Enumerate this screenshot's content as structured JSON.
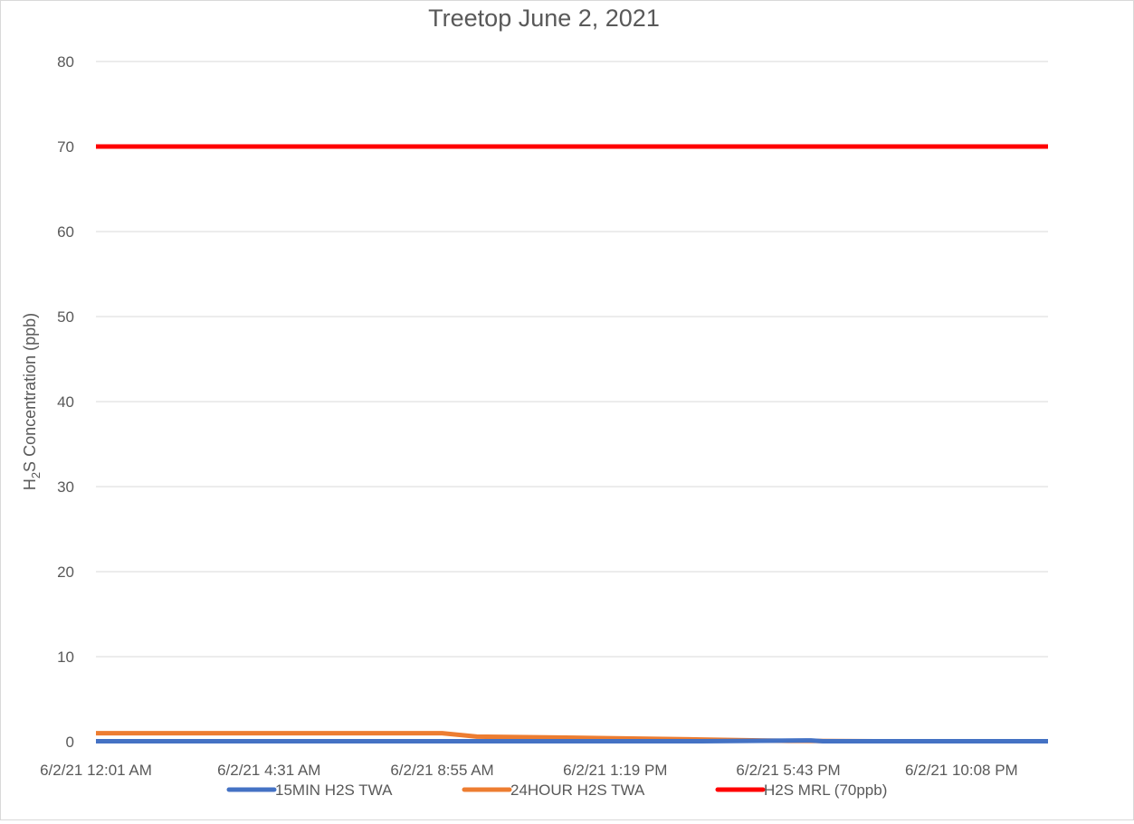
{
  "chart_data": {
    "type": "line",
    "title": "Treetop June 2, 2021",
    "ylabel_parts": {
      "prefix": "H",
      "subscript": "2",
      "suffix": "S Concentration (ppb)"
    },
    "xlabel": "",
    "ylim": [
      0,
      80
    ],
    "ytick_step": 10,
    "yticks": [
      "0",
      "10",
      "20",
      "30",
      "40",
      "50",
      "60",
      "70",
      "80"
    ],
    "grid": true,
    "legend_position": "bottom",
    "x_tick_labels": [
      "6/2/21 12:01 AM",
      "6/2/21 4:31 AM",
      "6/2/21 8:55 AM",
      "6/2/21 1:19 PM",
      "6/2/21 5:43 PM",
      "6/2/21 10:08 PM"
    ],
    "x_tick_index": [
      0,
      1,
      2,
      3,
      4,
      5
    ],
    "x_span": 5.5,
    "series": [
      {
        "name": "15MIN H2S TWA",
        "color": "#4472c4",
        "points": [
          [
            0,
            0.05
          ],
          [
            1,
            0.05
          ],
          [
            2,
            0.05
          ],
          [
            3,
            0.05
          ],
          [
            3.5,
            0.05
          ],
          [
            4.13,
            0.15
          ],
          [
            4.2,
            0.05
          ],
          [
            5,
            0.05
          ],
          [
            5.5,
            0.05
          ]
        ]
      },
      {
        "name": "24HOUR H2S TWA",
        "color": "#ed7d31",
        "points": [
          [
            0,
            1.0
          ],
          [
            1,
            1.0
          ],
          [
            2,
            1.0
          ],
          [
            2.2,
            0.6
          ],
          [
            2.6,
            0.5
          ],
          [
            3,
            0.4
          ],
          [
            3.5,
            0.25
          ],
          [
            4,
            0.1
          ],
          [
            4.5,
            0.05
          ],
          [
            5,
            0.05
          ],
          [
            5.5,
            0.05
          ]
        ]
      },
      {
        "name": "H2S MRL (70ppb)",
        "color": "#ff0000",
        "points": [
          [
            0,
            70
          ],
          [
            5.5,
            70
          ]
        ]
      }
    ]
  }
}
